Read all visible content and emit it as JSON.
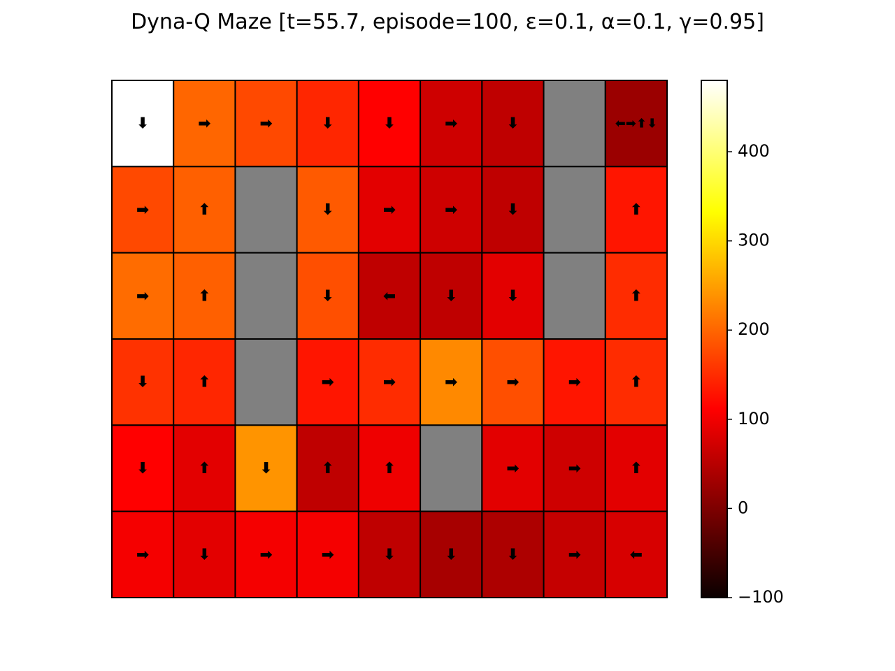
{
  "chart_data": {
    "type": "heatmap",
    "title": "Dyna-Q Maze [t=55.7, episode=100, ε=0.1, α=0.1, γ=0.95]",
    "rows": 6,
    "cols": 9,
    "values": [
      [
        480,
        200,
        175,
        145,
        110,
        62,
        50,
        null,
        20
      ],
      [
        175,
        195,
        null,
        190,
        80,
        62,
        50,
        null,
        130
      ],
      [
        205,
        195,
        null,
        180,
        50,
        50,
        80,
        null,
        150
      ],
      [
        155,
        145,
        null,
        130,
        150,
        230,
        180,
        130,
        150
      ],
      [
        110,
        80,
        240,
        50,
        90,
        null,
        80,
        62,
        80
      ],
      [
        95,
        80,
        95,
        95,
        50,
        30,
        35,
        55,
        70
      ]
    ],
    "wall_color": "#808080",
    "arrows": [
      [
        "⬇",
        "➡",
        "➡",
        "⬇",
        "⬇",
        "➡",
        "⬇",
        "",
        "⬅➡⬆⬇"
      ],
      [
        "➡",
        "⬆",
        "",
        "⬇",
        "➡",
        "➡",
        "⬇",
        "",
        "⬆"
      ],
      [
        "➡",
        "⬆",
        "",
        "⬇",
        "⬅",
        "⬇",
        "⬇",
        "",
        "⬆"
      ],
      [
        "⬇",
        "⬆",
        "",
        "➡",
        "➡",
        "➡",
        "➡",
        "➡",
        "⬆"
      ],
      [
        "⬇",
        "⬆",
        "⬇",
        "⬆",
        "⬆",
        "",
        "➡",
        "➡",
        "⬆"
      ],
      [
        "➡",
        "⬇",
        "➡",
        "➡",
        "⬇",
        "⬇",
        "⬇",
        "➡",
        "⬅"
      ]
    ],
    "colormap": "hot",
    "vmin": -100,
    "vmax": 480,
    "colorbar": {
      "ticks": [
        -100,
        0,
        100,
        200,
        300,
        400
      ],
      "tick_labels": [
        "−100",
        "0",
        "100",
        "200",
        "300",
        "400"
      ]
    }
  }
}
